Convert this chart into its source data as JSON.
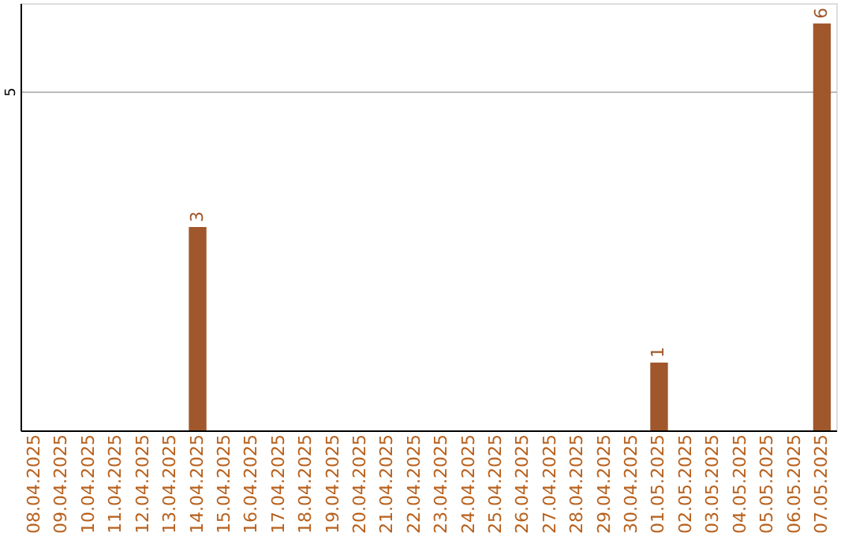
{
  "chart_data": {
    "type": "bar",
    "categories": [
      "08.04.2025",
      "09.04.2025",
      "10.04.2025",
      "11.04.2025",
      "12.04.2025",
      "13.04.2025",
      "14.04.2025",
      "15.04.2025",
      "16.04.2025",
      "17.04.2025",
      "18.04.2025",
      "19.04.2025",
      "20.04.2025",
      "21.04.2025",
      "22.04.2025",
      "23.04.2025",
      "24.04.2025",
      "25.04.2025",
      "26.04.2025",
      "27.04.2025",
      "28.04.2025",
      "29.04.2025",
      "30.04.2025",
      "01.05.2025",
      "02.05.2025",
      "03.05.2025",
      "04.05.2025",
      "05.05.2025",
      "06.05.2025",
      "07.05.2025"
    ],
    "values": [
      0,
      0,
      0,
      0,
      0,
      0,
      3,
      0,
      0,
      0,
      0,
      0,
      0,
      0,
      0,
      0,
      0,
      0,
      0,
      0,
      0,
      0,
      0,
      1,
      0,
      0,
      0,
      0,
      0,
      6
    ],
    "value_labels": [
      null,
      null,
      null,
      null,
      null,
      null,
      "3",
      null,
      null,
      null,
      null,
      null,
      null,
      null,
      null,
      null,
      null,
      null,
      null,
      null,
      null,
      null,
      null,
      "1",
      null,
      null,
      null,
      null,
      null,
      "6"
    ],
    "color": "#a0572b",
    "ylim": [
      0,
      6.3
    ],
    "yticks": [
      5
    ],
    "grid": "y"
  }
}
